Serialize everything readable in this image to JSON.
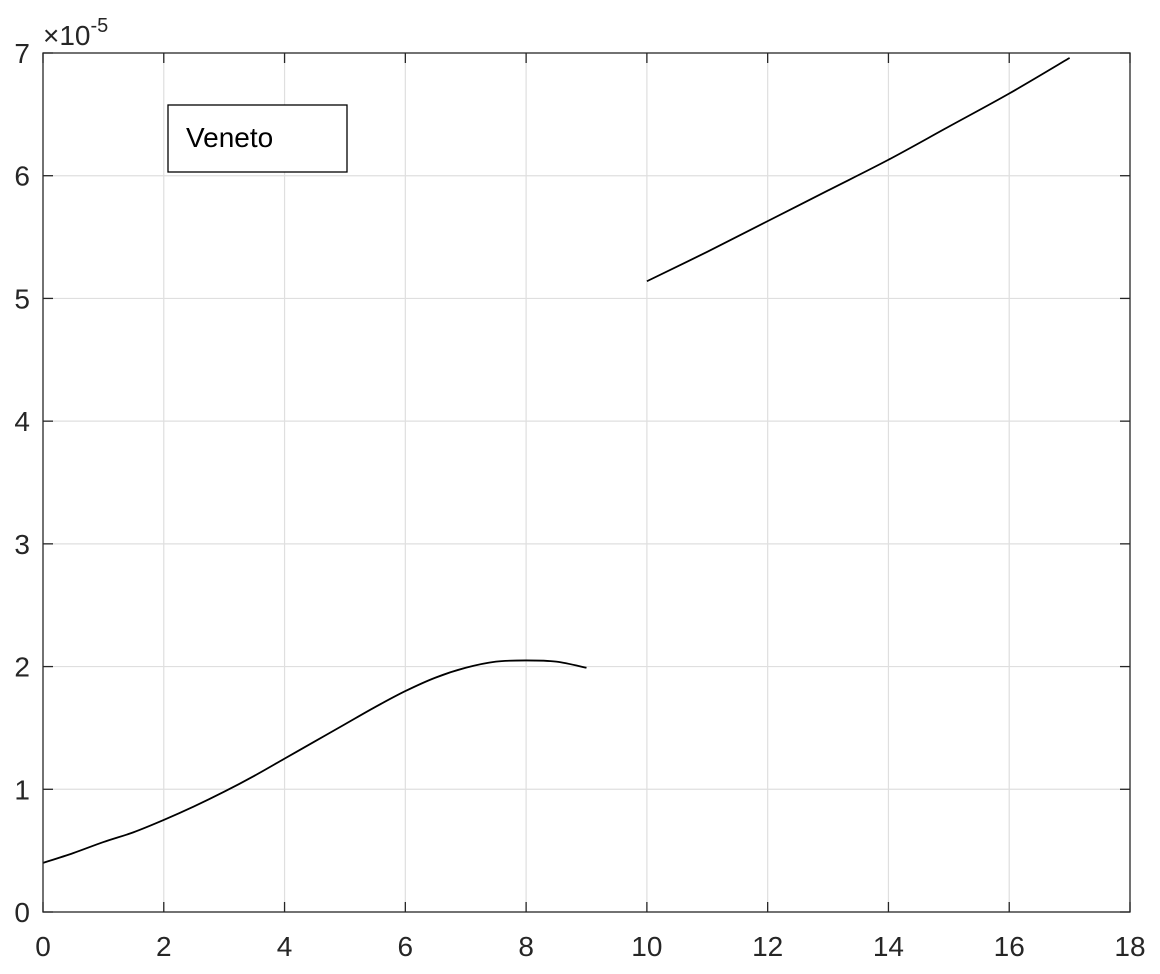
{
  "chart_data": {
    "type": "line",
    "title": "",
    "xlabel": "",
    "ylabel": "",
    "xlim": [
      0,
      18
    ],
    "ylim": [
      0,
      7
    ],
    "x_ticks": [
      0,
      2,
      4,
      6,
      8,
      10,
      12,
      14,
      16,
      18
    ],
    "y_ticks": [
      0,
      1,
      2,
      3,
      4,
      5,
      6,
      7
    ],
    "x_tick_labels": [
      "0",
      "2",
      "4",
      "6",
      "8",
      "10",
      "12",
      "14",
      "16",
      "18"
    ],
    "y_tick_labels": [
      "0",
      "1",
      "2",
      "3",
      "4",
      "5",
      "6",
      "7"
    ],
    "y_exponent": {
      "base": "×10",
      "power": "-5"
    },
    "grid": true,
    "legend": {
      "position": "top-left",
      "entries": [
        "Veneto"
      ]
    },
    "series": [
      {
        "name": "Veneto",
        "color": "#000000",
        "segments": [
          {
            "x": [
              0,
              0.5,
              1,
              1.5,
              2,
              2.5,
              3,
              3.5,
              4,
              4.5,
              5,
              5.5,
              6,
              6.5,
              7,
              7.5,
              8,
              8.5,
              9
            ],
            "y": [
              0.4,
              0.48,
              0.57,
              0.65,
              0.75,
              0.86,
              0.98,
              1.11,
              1.25,
              1.39,
              1.53,
              1.67,
              1.8,
              1.91,
              1.99,
              2.04,
              2.05,
              2.04,
              1.99
            ]
          },
          {
            "x": [
              10,
              11,
              12,
              13,
              14,
              15,
              16,
              17
            ],
            "y": [
              5.14,
              5.38,
              5.63,
              5.88,
              6.13,
              6.4,
              6.67,
              6.96
            ]
          }
        ]
      }
    ]
  }
}
